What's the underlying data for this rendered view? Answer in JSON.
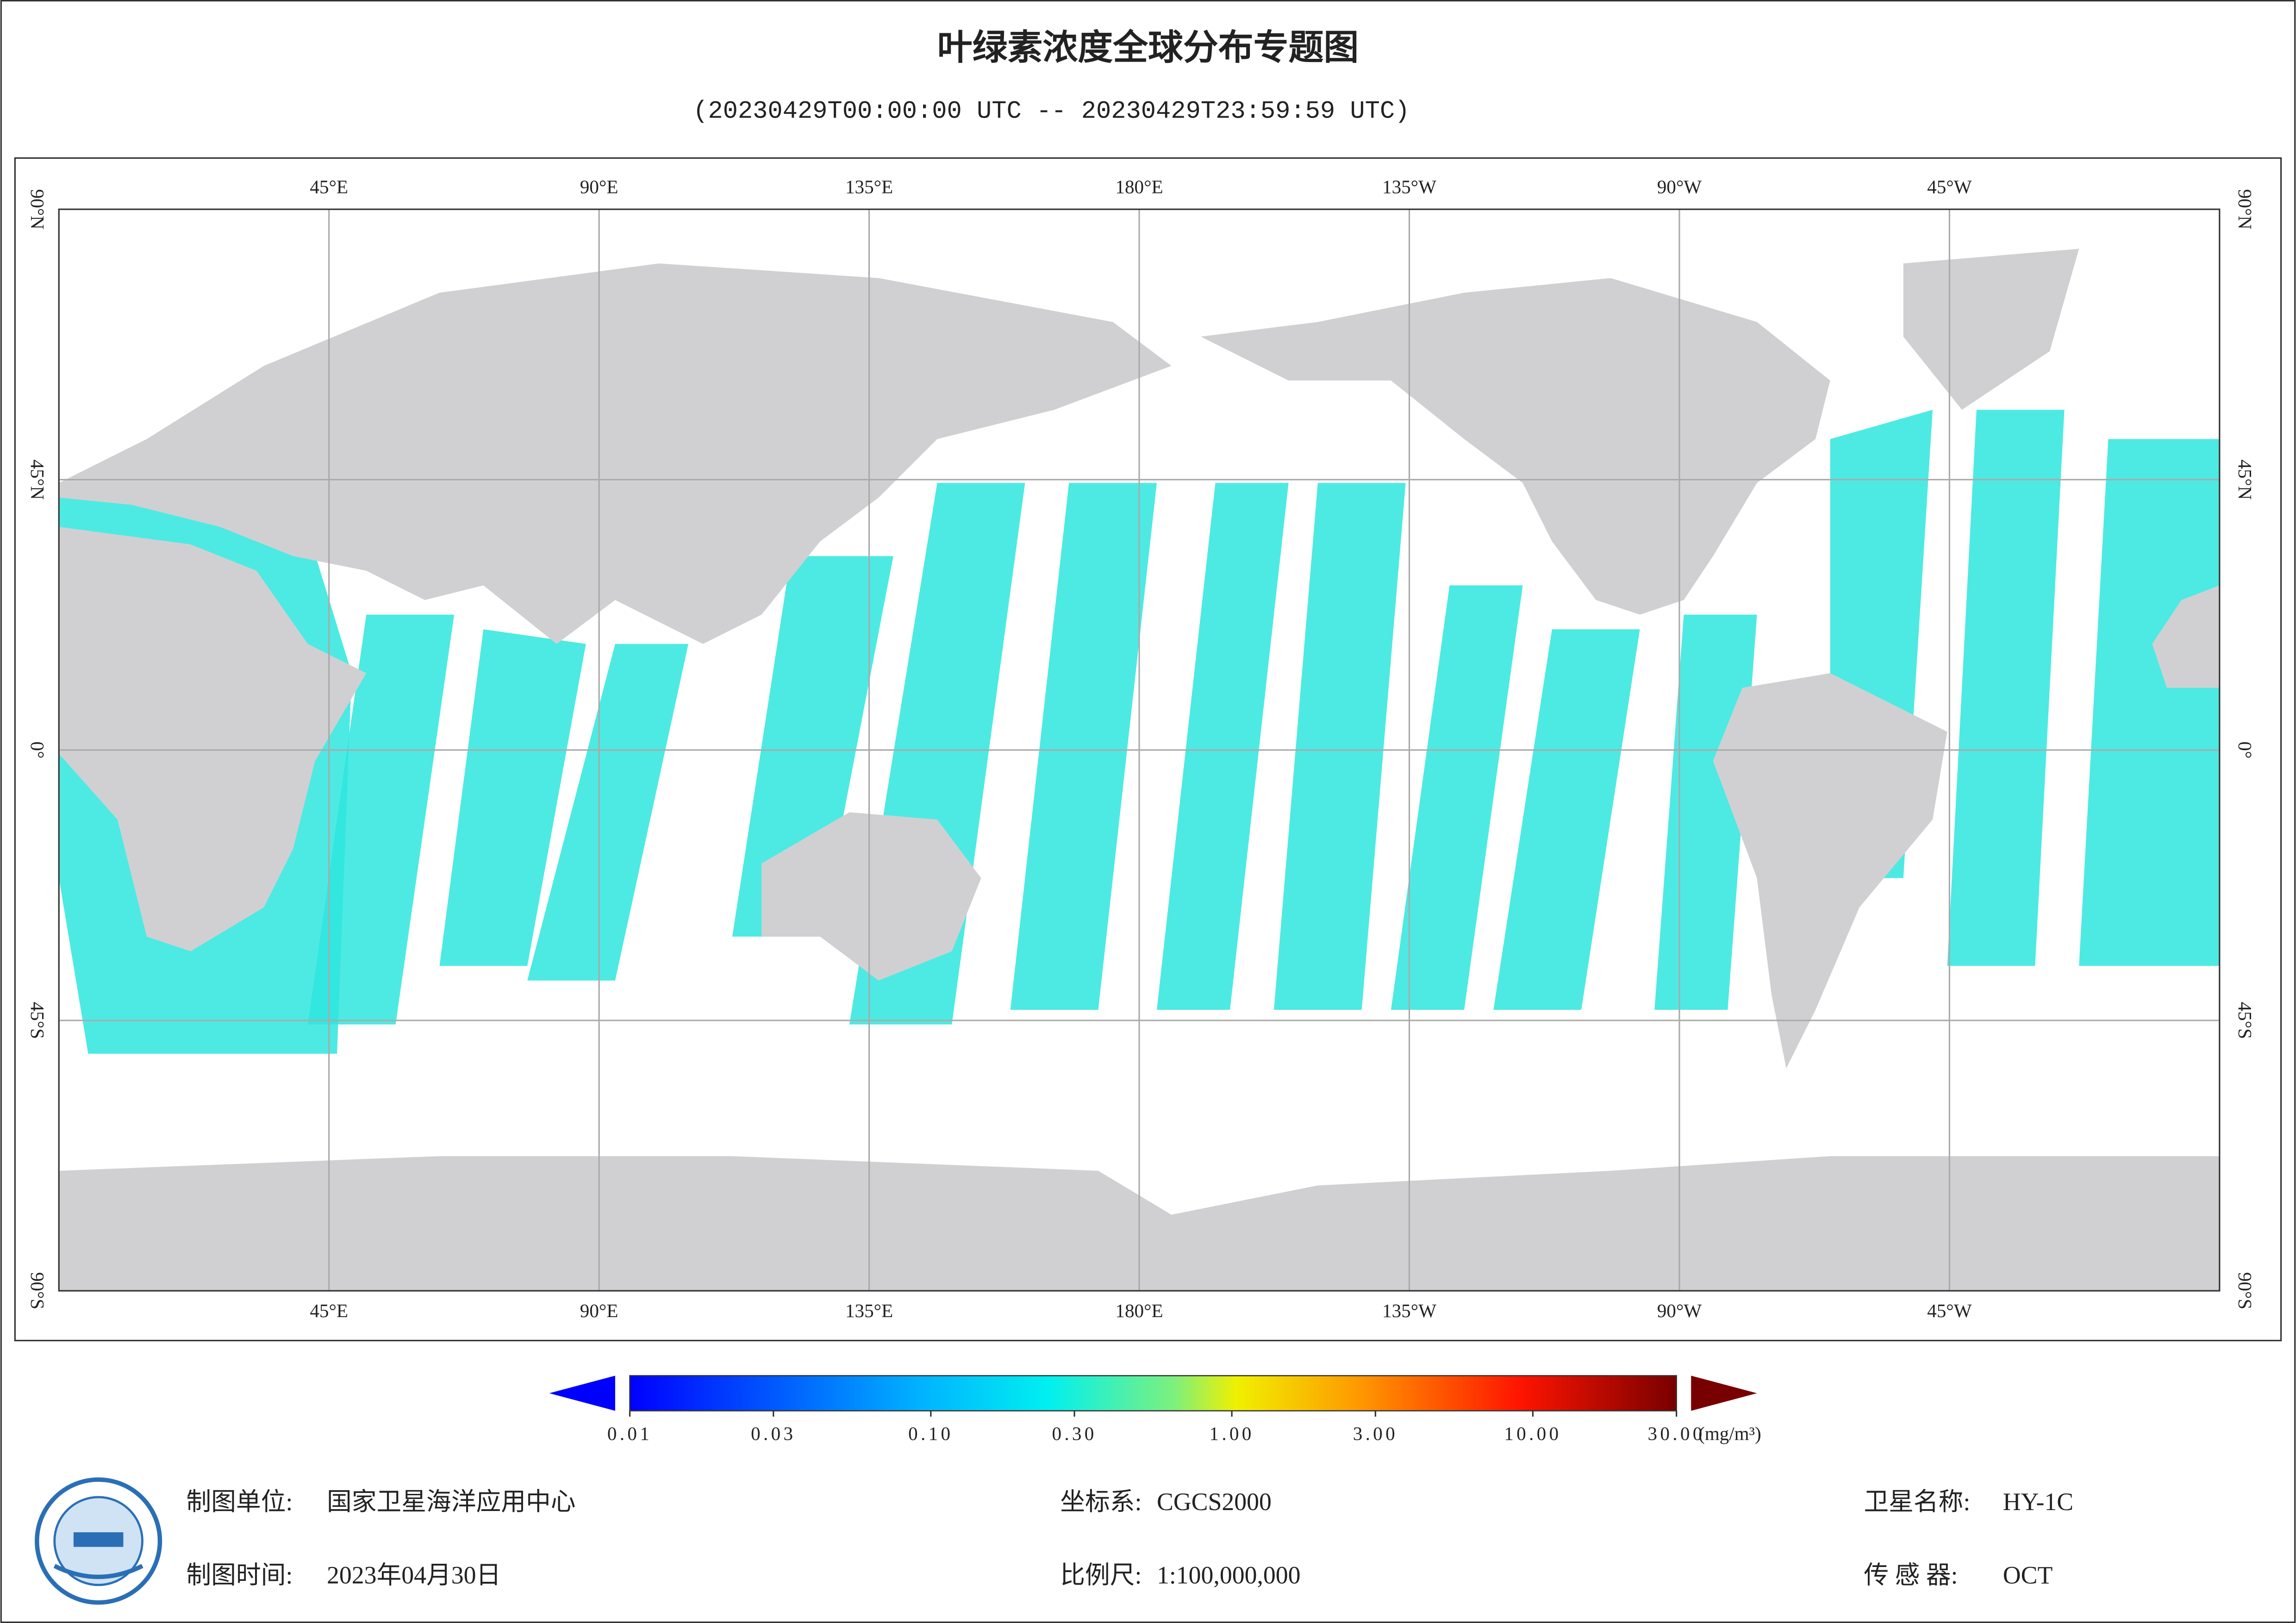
{
  "header": {
    "title": "叶绿素浓度全球分布专题图",
    "subtitle": "(20230429T00:00:00 UTC -- 20230429T23:59:59 UTC)"
  },
  "map": {
    "lon_labels": [
      "45°E",
      "90°E",
      "135°E",
      "180°E",
      "135°W",
      "90°W",
      "45°W"
    ],
    "lat_labels": [
      "90°N",
      "45°N",
      "0°",
      "45°S",
      "90°S"
    ]
  },
  "colorbar": {
    "range": [
      0.01,
      30
    ],
    "ticks": [
      {
        "value": 0.01,
        "label": "0.01"
      },
      {
        "value": 0.03,
        "label": "0.03"
      },
      {
        "value": 0.1,
        "label": "0.10"
      },
      {
        "value": 0.3,
        "label": "0.30"
      },
      {
        "value": 1,
        "label": "1.00"
      },
      {
        "value": 3,
        "label": "3.00"
      },
      {
        "value": 10,
        "label": "10.00"
      },
      {
        "value": 30,
        "label": "30.00"
      }
    ],
    "unit": "(mg/m³)"
  },
  "footer": {
    "rows": [
      [
        {
          "label": "制图单位:",
          "value": "国家卫星海洋应用中心"
        },
        {
          "label": "坐标系:",
          "value": "CGCS2000"
        },
        {
          "label": "卫星名称:",
          "value": "HY-1C"
        }
      ],
      [
        {
          "label": "制图时间:",
          "value": "2023年04月30日"
        },
        {
          "label": "比例尺:",
          "value": "1:100,000,000"
        },
        {
          "label": "传 感 器:",
          "value": "OCT"
        }
      ]
    ]
  }
}
